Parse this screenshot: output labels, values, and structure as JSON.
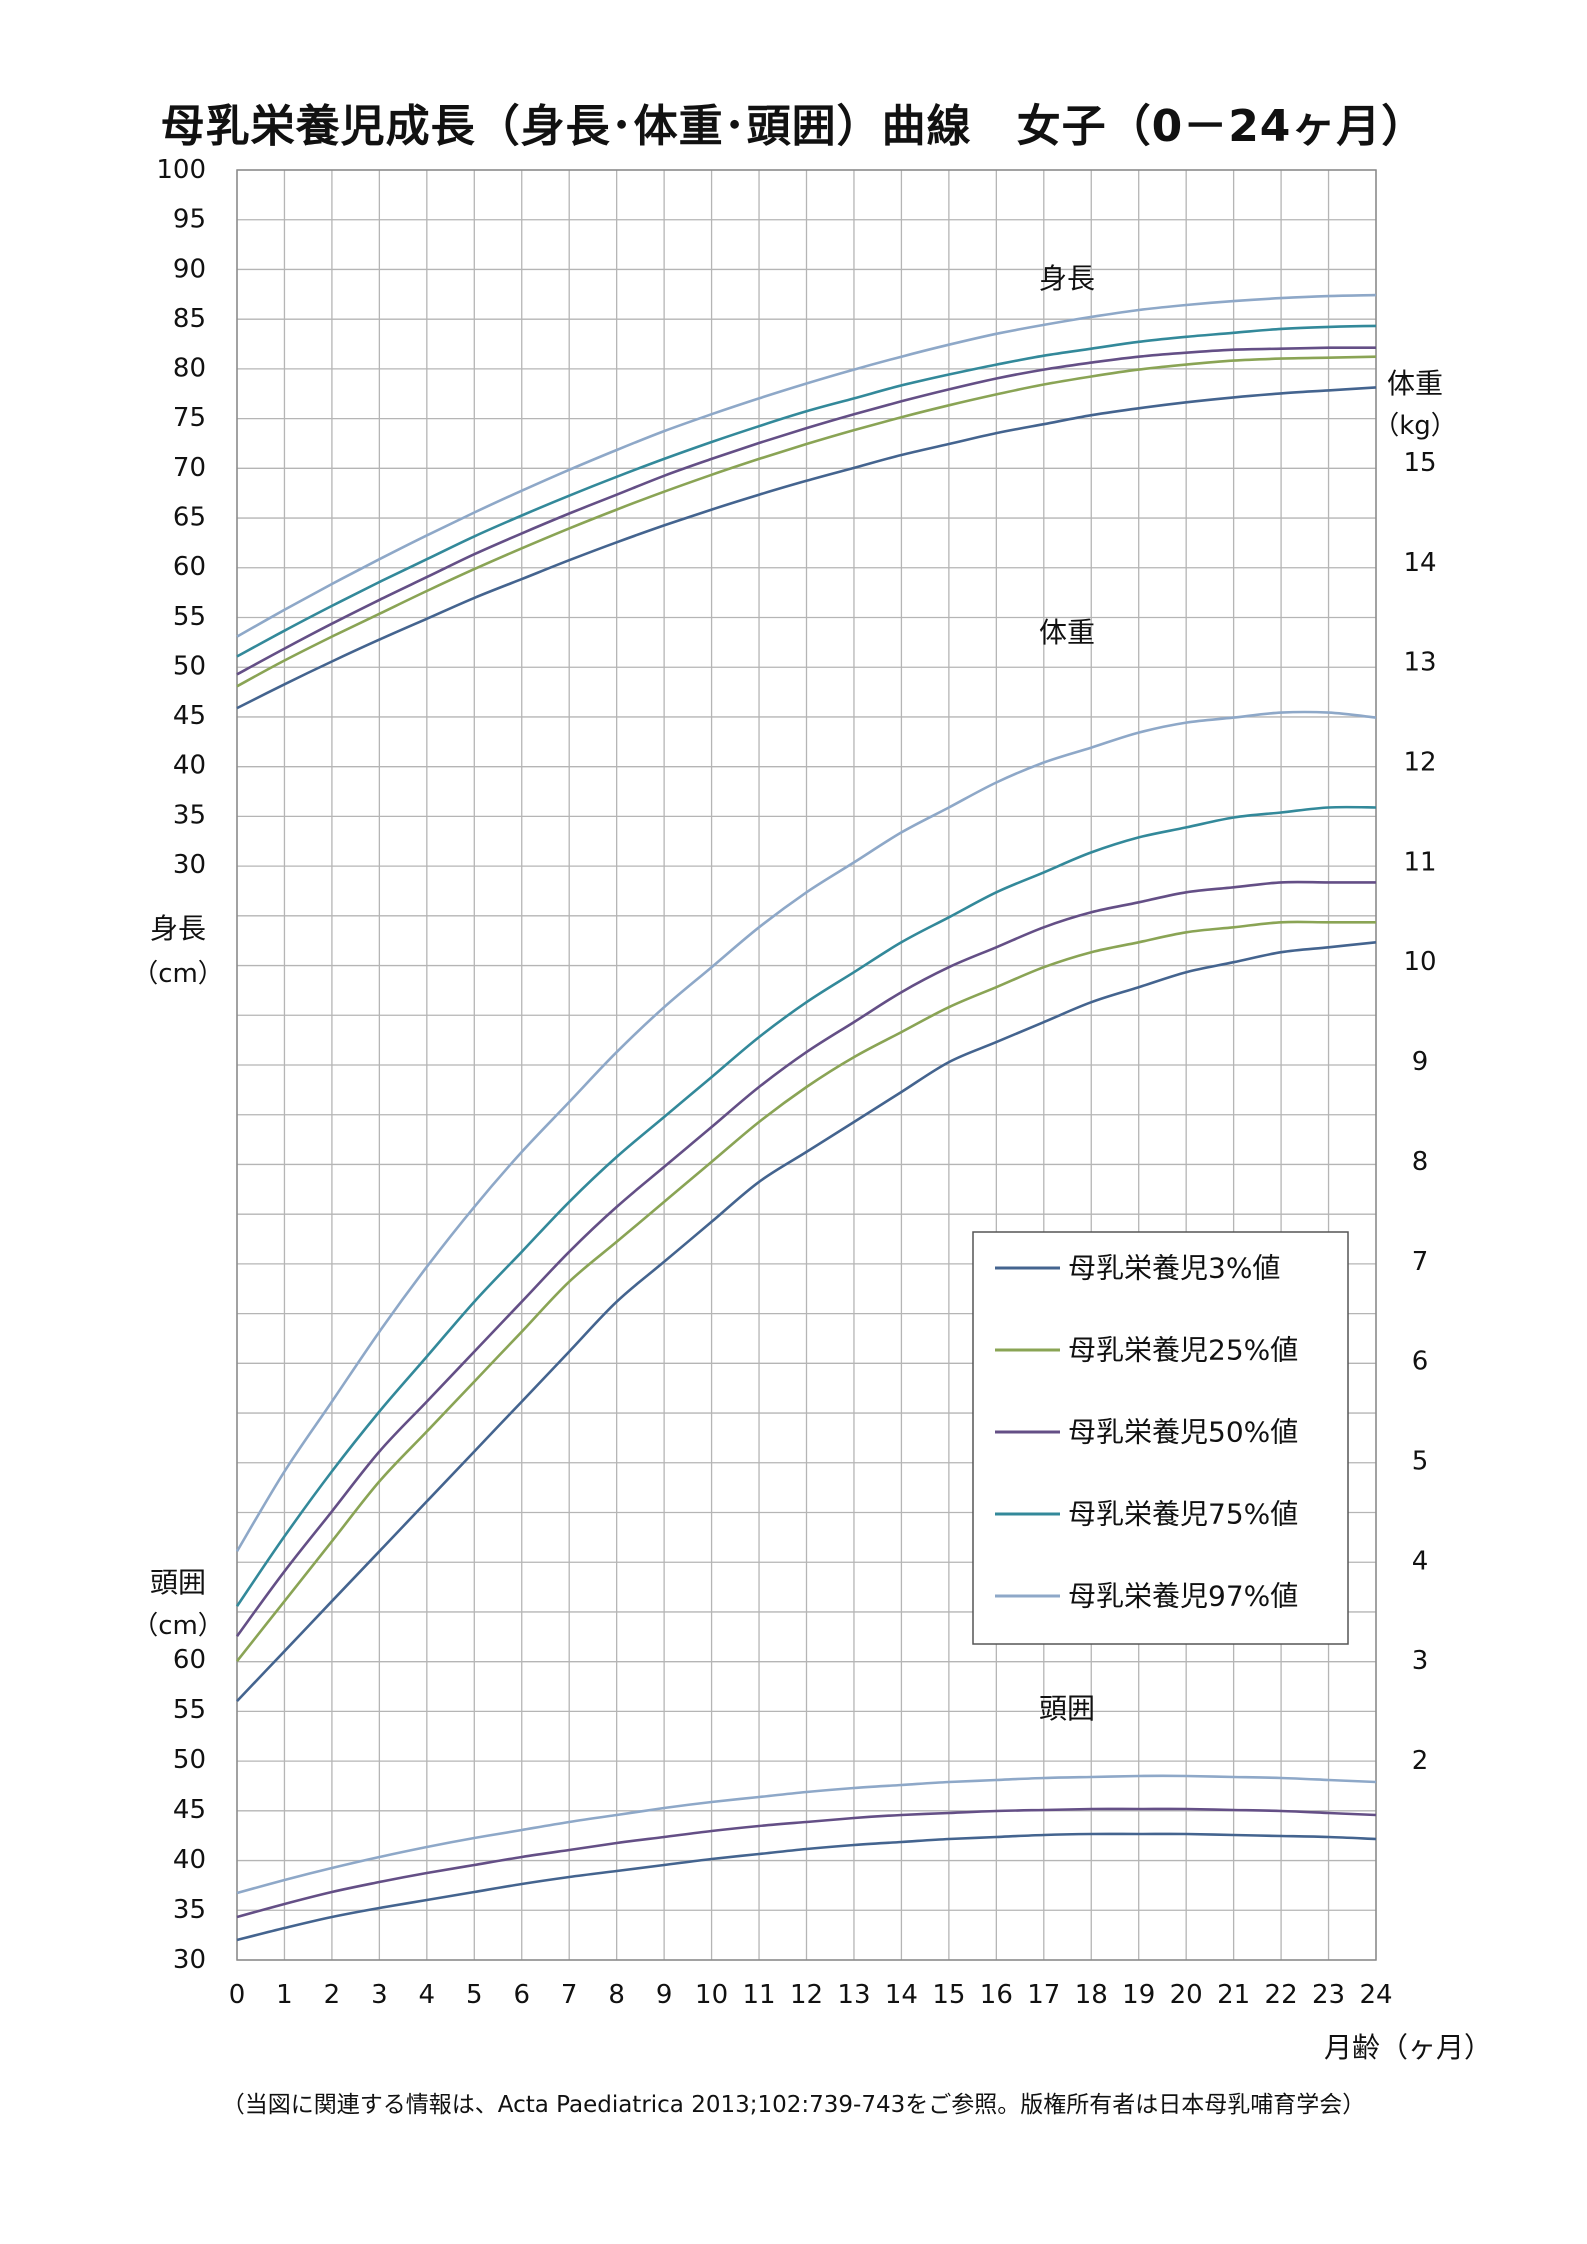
{
  "title": "母乳栄養児成長（身長･体重･頭囲）曲線　女子（0－24ヶ月）",
  "footnote": "（当図に関連する情報は、Acta Paediatrica 2013;102:739-743をご参照。版権所有者は日本母乳哺育学会）",
  "chart_data": {
    "type": "line",
    "x": [
      0,
      1,
      2,
      3,
      4,
      5,
      6,
      7,
      8,
      9,
      10,
      11,
      12,
      13,
      14,
      15,
      16,
      17,
      18,
      19,
      20,
      21,
      22,
      23,
      24
    ],
    "x_ticks": [
      "0",
      "1",
      "2",
      "3",
      "4",
      "5",
      "6",
      "7",
      "8",
      "9",
      "10",
      "11",
      "12",
      "13",
      "14",
      "15",
      "16",
      "17",
      "18",
      "19",
      "20",
      "21",
      "22",
      "23",
      "24"
    ],
    "xlabel": "月齢（ヶ月）",
    "grid": true,
    "axes": {
      "height": {
        "label": "身長",
        "unit": "（cm）",
        "range": [
          30,
          100
        ],
        "ticks": [
          "100",
          "95",
          "90",
          "85",
          "80",
          "75",
          "70",
          "65",
          "60",
          "55",
          "50",
          "45",
          "40",
          "35",
          "30"
        ]
      },
      "weight": {
        "label": "体重",
        "unit": "（kg）",
        "range": [
          2,
          15
        ],
        "ticks": [
          "15",
          "14",
          "13",
          "12",
          "11",
          "10",
          "9",
          "8",
          "7",
          "6",
          "5",
          "4",
          "3",
          "2"
        ]
      },
      "head": {
        "label": "頭囲",
        "unit": "（cm）",
        "range": [
          30,
          60
        ],
        "ticks": [
          "60",
          "55",
          "50",
          "45",
          "40",
          "35",
          "30"
        ]
      }
    },
    "panel_labels": {
      "height": "身長",
      "weight": "体重",
      "head": "頭囲"
    },
    "legend": {
      "position": "right-middle",
      "items": [
        {
          "name": "母乳栄養児3%値",
          "color": "#44648f"
        },
        {
          "name": "母乳栄養児25%値",
          "color": "#8aa455"
        },
        {
          "name": "母乳栄養児50%値",
          "color": "#644f86"
        },
        {
          "name": "母乳栄養児75%値",
          "color": "#33899a"
        },
        {
          "name": "母乳栄養児97%値",
          "color": "#8ea8c8"
        }
      ]
    },
    "series": [
      {
        "name": "母乳栄養児3%値",
        "axis": "height",
        "values": [
          45.8,
          48.2,
          50.5,
          52.7,
          54.8,
          56.9,
          58.8,
          60.7,
          62.5,
          64.2,
          65.8,
          67.3,
          68.7,
          70.0,
          71.3,
          72.4,
          73.5,
          74.4,
          75.3,
          76.0,
          76.6,
          77.1,
          77.5,
          77.8,
          78.1
        ]
      },
      {
        "name": "母乳栄養児25%値",
        "axis": "height",
        "values": [
          48.0,
          50.6,
          53.0,
          55.3,
          57.6,
          59.8,
          61.9,
          63.9,
          65.8,
          67.6,
          69.3,
          70.9,
          72.4,
          73.8,
          75.1,
          76.3,
          77.4,
          78.4,
          79.2,
          79.9,
          80.4,
          80.8,
          81.0,
          81.1,
          81.2
        ]
      },
      {
        "name": "母乳栄養児50%値",
        "axis": "height",
        "values": [
          49.2,
          51.8,
          54.3,
          56.7,
          59.0,
          61.3,
          63.4,
          65.4,
          67.3,
          69.2,
          70.9,
          72.5,
          74.0,
          75.4,
          76.7,
          77.9,
          79.0,
          79.9,
          80.6,
          81.2,
          81.6,
          81.9,
          82.0,
          82.1,
          82.1
        ]
      },
      {
        "name": "母乳栄養児75%値",
        "axis": "height",
        "values": [
          51.0,
          53.6,
          56.1,
          58.5,
          60.8,
          63.1,
          65.2,
          67.2,
          69.1,
          70.9,
          72.6,
          74.2,
          75.7,
          77.0,
          78.3,
          79.4,
          80.4,
          81.3,
          82.0,
          82.7,
          83.2,
          83.6,
          84.0,
          84.2,
          84.3
        ]
      },
      {
        "name": "母乳栄養児97%値",
        "axis": "height",
        "values": [
          53.0,
          55.7,
          58.3,
          60.8,
          63.2,
          65.5,
          67.7,
          69.8,
          71.8,
          73.7,
          75.4,
          77.0,
          78.5,
          79.9,
          81.2,
          82.4,
          83.5,
          84.4,
          85.2,
          85.9,
          86.4,
          86.8,
          87.1,
          87.3,
          87.4
        ]
      },
      {
        "name": "母乳栄養児3%値",
        "axis": "weight",
        "values": [
          2.6,
          3.1,
          3.6,
          4.1,
          4.6,
          5.1,
          5.6,
          6.1,
          6.6,
          7.0,
          7.4,
          7.8,
          8.1,
          8.4,
          8.7,
          9.0,
          9.2,
          9.4,
          9.6,
          9.75,
          9.9,
          10.0,
          10.1,
          10.15,
          10.2
        ]
      },
      {
        "name": "母乳栄養児25%値",
        "axis": "weight",
        "values": [
          3.0,
          3.6,
          4.2,
          4.8,
          5.3,
          5.8,
          6.3,
          6.8,
          7.2,
          7.6,
          8.0,
          8.4,
          8.75,
          9.05,
          9.3,
          9.55,
          9.75,
          9.95,
          10.1,
          10.2,
          10.3,
          10.35,
          10.4,
          10.4,
          10.4
        ]
      },
      {
        "name": "母乳栄養児50%値",
        "axis": "weight",
        "values": [
          3.25,
          3.9,
          4.5,
          5.1,
          5.6,
          6.1,
          6.6,
          7.1,
          7.55,
          7.95,
          8.35,
          8.75,
          9.1,
          9.4,
          9.7,
          9.95,
          10.15,
          10.35,
          10.5,
          10.6,
          10.7,
          10.75,
          10.8,
          10.8,
          10.8
        ]
      },
      {
        "name": "母乳栄養児75%値",
        "axis": "weight",
        "values": [
          3.55,
          4.25,
          4.9,
          5.5,
          6.05,
          6.6,
          7.1,
          7.6,
          8.05,
          8.45,
          8.85,
          9.25,
          9.6,
          9.9,
          10.2,
          10.45,
          10.7,
          10.9,
          11.1,
          11.25,
          11.35,
          11.45,
          11.5,
          11.55,
          11.55
        ]
      },
      {
        "name": "母乳栄養児97%値",
        "axis": "weight",
        "values": [
          4.1,
          4.9,
          5.6,
          6.3,
          6.95,
          7.55,
          8.1,
          8.6,
          9.1,
          9.55,
          9.95,
          10.35,
          10.7,
          11.0,
          11.3,
          11.55,
          11.8,
          12.0,
          12.15,
          12.3,
          12.4,
          12.45,
          12.5,
          12.5,
          12.45
        ]
      },
      {
        "name": "母乳栄養児3%値",
        "axis": "head",
        "values": [
          32.0,
          33.2,
          34.3,
          35.2,
          36.0,
          36.8,
          37.6,
          38.3,
          38.9,
          39.5,
          40.1,
          40.6,
          41.1,
          41.5,
          41.8,
          42.1,
          42.3,
          42.5,
          42.6,
          42.6,
          42.6,
          42.5,
          42.4,
          42.3,
          42.1
        ]
      },
      {
        "name": "母乳栄養児50%値",
        "axis": "head",
        "values": [
          34.3,
          35.6,
          36.8,
          37.8,
          38.7,
          39.5,
          40.3,
          41.0,
          41.7,
          42.3,
          42.9,
          43.4,
          43.8,
          44.2,
          44.5,
          44.7,
          44.9,
          45.0,
          45.1,
          45.1,
          45.1,
          45.0,
          44.9,
          44.7,
          44.5
        ]
      },
      {
        "name": "母乳栄養児97%値",
        "axis": "head",
        "values": [
          36.7,
          38.0,
          39.2,
          40.3,
          41.3,
          42.2,
          43.0,
          43.8,
          44.5,
          45.2,
          45.8,
          46.3,
          46.8,
          47.2,
          47.5,
          47.8,
          48.0,
          48.2,
          48.3,
          48.4,
          48.4,
          48.3,
          48.2,
          48.0,
          47.8
        ]
      }
    ]
  }
}
